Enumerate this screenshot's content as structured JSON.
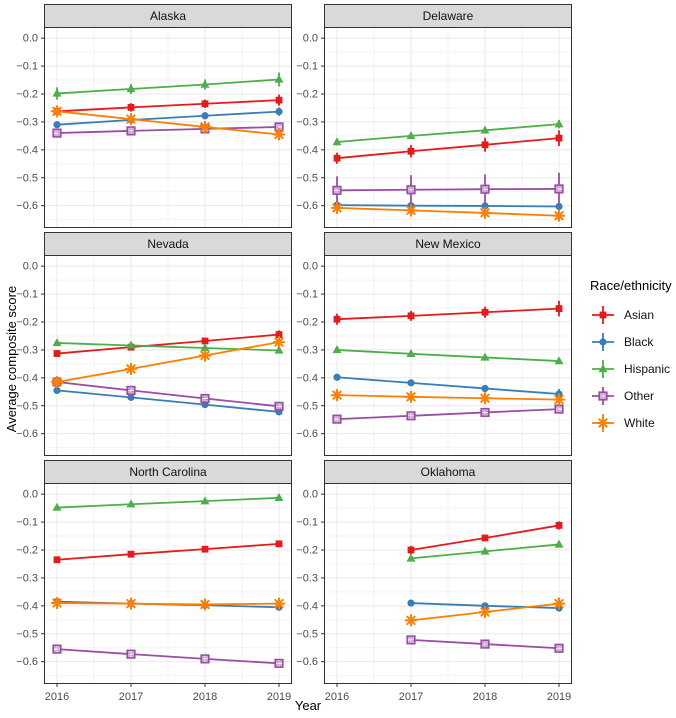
{
  "chart_data": {
    "type": "line",
    "title": "",
    "xlabel": "Year",
    "ylabel": "Average composite score",
    "legend_title": "Race/ethnicity",
    "x": [
      2016,
      2017,
      2018,
      2019
    ],
    "x_tick_labels": [
      "2016",
      "2017",
      "2018",
      "2019"
    ],
    "ylim": [
      -0.68,
      0.04
    ],
    "y_ticks": [
      0.0,
      -0.1,
      -0.2,
      -0.3,
      -0.4,
      -0.5,
      -0.6
    ],
    "y_tick_labels": [
      "0.0",
      "−0.1",
      "−0.2",
      "−0.3",
      "−0.4",
      "−0.5",
      "−0.6"
    ],
    "y_minor_ticks": [
      -0.05,
      -0.15,
      -0.25,
      -0.35,
      -0.45,
      -0.55,
      -0.65
    ],
    "grid": true,
    "legend_position": "right",
    "series_meta": [
      {
        "name": "Asian",
        "color": "#E41A1C",
        "marker": "square"
      },
      {
        "name": "Black",
        "color": "#377EB8",
        "marker": "circle"
      },
      {
        "name": "Hispanic",
        "color": "#4DAF4A",
        "marker": "triangle"
      },
      {
        "name": "Other",
        "color": "#984EA3",
        "marker": "square-plus"
      },
      {
        "name": "White",
        "color": "#FF7F00",
        "marker": "asterisk"
      }
    ],
    "facets": [
      {
        "title": "Alaska",
        "series": [
          {
            "name": "Asian",
            "values": [
              -0.262,
              -0.248,
              -0.235,
              -0.222
            ],
            "errors": [
              0.018,
              0.015,
              0.015,
              0.02
            ]
          },
          {
            "name": "Black",
            "values": [
              -0.31,
              -0.293,
              -0.278,
              -0.263
            ],
            "errors": [
              0.012,
              0.01,
              0.012,
              0.015
            ]
          },
          {
            "name": "Hispanic",
            "values": [
              -0.198,
              -0.182,
              -0.166,
              -0.148
            ],
            "errors": [
              0.022,
              0.018,
              0.018,
              0.025
            ]
          },
          {
            "name": "Other",
            "values": [
              -0.34,
              -0.332,
              -0.325,
              -0.318
            ],
            "errors": [
              0.012,
              0.01,
              0.01,
              0.012
            ]
          },
          {
            "name": "White",
            "values": [
              -0.262,
              -0.29,
              -0.318,
              -0.345
            ],
            "errors": [
              0.008,
              0.008,
              0.008,
              0.01
            ]
          }
        ]
      },
      {
        "title": "Delaware",
        "series": [
          {
            "name": "Asian",
            "values": [
              -0.43,
              -0.405,
              -0.382,
              -0.358
            ],
            "errors": [
              0.02,
              0.022,
              0.025,
              0.028
            ]
          },
          {
            "name": "Black",
            "values": [
              -0.598,
              -0.6,
              -0.601,
              -0.603
            ],
            "errors": [
              0.008,
              0.008,
              0.008,
              0.01
            ]
          },
          {
            "name": "Hispanic",
            "values": [
              -0.372,
              -0.35,
              -0.33,
              -0.308
            ],
            "errors": [
              0.012,
              0.01,
              0.012,
              0.015
            ]
          },
          {
            "name": "Other",
            "values": [
              -0.545,
              -0.543,
              -0.541,
              -0.54
            ],
            "errors": [
              0.05,
              0.052,
              0.053,
              0.058
            ]
          },
          {
            "name": "White",
            "values": [
              -0.608,
              -0.617,
              -0.626,
              -0.636
            ],
            "errors": [
              0.006,
              0.006,
              0.006,
              0.008
            ]
          }
        ]
      },
      {
        "title": "Nevada",
        "series": [
          {
            "name": "Asian",
            "values": [
              -0.313,
              -0.29,
              -0.268,
              -0.245
            ],
            "errors": [
              0.012,
              0.01,
              0.01,
              0.015
            ]
          },
          {
            "name": "Black",
            "values": [
              -0.445,
              -0.47,
              -0.496,
              -0.522
            ],
            "errors": [
              0.008,
              0.008,
              0.008,
              0.01
            ]
          },
          {
            "name": "Hispanic",
            "values": [
              -0.275,
              -0.284,
              -0.293,
              -0.302
            ],
            "errors": [
              0.008,
              0.006,
              0.008,
              0.01
            ]
          },
          {
            "name": "Other",
            "values": [
              -0.415,
              -0.445,
              -0.474,
              -0.502
            ],
            "errors": [
              0.012,
              0.01,
              0.012,
              0.015
            ]
          },
          {
            "name": "White",
            "values": [
              -0.415,
              -0.368,
              -0.32,
              -0.272
            ],
            "errors": [
              0.006,
              0.006,
              0.006,
              0.008
            ]
          }
        ]
      },
      {
        "title": "New Mexico",
        "series": [
          {
            "name": "Asian",
            "values": [
              -0.19,
              -0.178,
              -0.165,
              -0.152
            ],
            "errors": [
              0.02,
              0.018,
              0.02,
              0.028
            ]
          },
          {
            "name": "Black",
            "values": [
              -0.398,
              -0.418,
              -0.438,
              -0.458
            ],
            "errors": [
              0.01,
              0.01,
              0.012,
              0.018
            ]
          },
          {
            "name": "Hispanic",
            "values": [
              -0.3,
              -0.314,
              -0.327,
              -0.34
            ],
            "errors": [
              0.006,
              0.006,
              0.006,
              0.008
            ]
          },
          {
            "name": "Other",
            "values": [
              -0.548,
              -0.536,
              -0.524,
              -0.512
            ],
            "errors": [
              0.01,
              0.008,
              0.01,
              0.012
            ]
          },
          {
            "name": "White",
            "values": [
              -0.462,
              -0.468,
              -0.473,
              -0.478
            ],
            "errors": [
              0.005,
              0.005,
              0.005,
              0.006
            ]
          }
        ]
      },
      {
        "title": "North Carolina",
        "series": [
          {
            "name": "Asian",
            "values": [
              -0.235,
              -0.215,
              -0.197,
              -0.178
            ],
            "errors": [
              0.008,
              0.006,
              0.006,
              0.008
            ]
          },
          {
            "name": "Black",
            "values": [
              -0.385,
              -0.392,
              -0.398,
              -0.405
            ],
            "errors": [
              0.006,
              0.005,
              0.005,
              0.006
            ]
          },
          {
            "name": "Hispanic",
            "values": [
              -0.048,
              -0.036,
              -0.025,
              -0.013
            ],
            "errors": [
              0.006,
              0.005,
              0.005,
              0.006
            ]
          },
          {
            "name": "Other",
            "values": [
              -0.555,
              -0.573,
              -0.59,
              -0.606
            ],
            "errors": [
              0.008,
              0.006,
              0.008,
              0.008
            ]
          },
          {
            "name": "White",
            "values": [
              -0.39,
              -0.392,
              -0.395,
              -0.392
            ],
            "errors": [
              0.004,
              0.004,
              0.004,
              0.005
            ]
          }
        ]
      },
      {
        "title": "Oklahoma",
        "series": [
          {
            "name": "Asian",
            "values": [
              null,
              -0.2,
              -0.157,
              -0.112
            ],
            "errors": [
              null,
              0.015,
              0.012,
              0.015
            ]
          },
          {
            "name": "Black",
            "values": [
              null,
              -0.39,
              -0.4,
              -0.408
            ],
            "errors": [
              null,
              0.008,
              0.008,
              0.01
            ]
          },
          {
            "name": "Hispanic",
            "values": [
              null,
              -0.23,
              -0.205,
              -0.18
            ],
            "errors": [
              null,
              0.01,
              0.008,
              0.01
            ]
          },
          {
            "name": "Other",
            "values": [
              null,
              -0.522,
              -0.537,
              -0.552
            ],
            "errors": [
              null,
              0.01,
              0.01,
              0.012
            ]
          },
          {
            "name": "White",
            "values": [
              null,
              -0.452,
              -0.422,
              -0.392
            ],
            "errors": [
              null,
              0.01,
              0.01,
              0.012
            ]
          }
        ]
      }
    ],
    "style": {
      "panel_bg": "#ffffff",
      "panel_border": "#333333",
      "strip_bg": "#d9d9d9",
      "grid_major": "#e8e8e8",
      "grid_minor": "#f3f3f3",
      "tick_color": "#333333",
      "tick_label_color": "#4d4d4d"
    }
  }
}
